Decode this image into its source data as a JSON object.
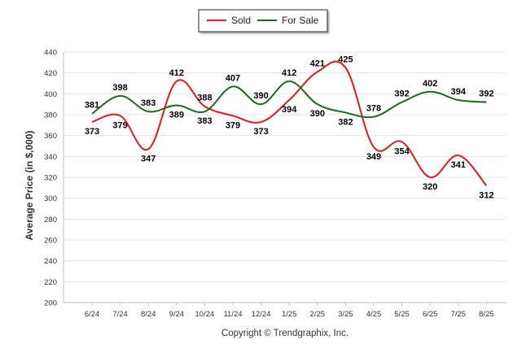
{
  "chart_data": {
    "type": "line",
    "categories": [
      "6/24",
      "7/24",
      "8/24",
      "9/24",
      "10/24",
      "11/24",
      "12/24",
      "1/25",
      "2/25",
      "3/25",
      "4/25",
      "5/25",
      "6/25",
      "7/25",
      "8/25"
    ],
    "series": [
      {
        "name": "Sold",
        "color": "#e31a1c",
        "values": [
          373,
          379,
          347,
          412,
          388,
          379,
          373,
          394,
          421,
          425,
          349,
          354,
          320,
          341,
          312
        ]
      },
      {
        "name": "For Sale",
        "color": "#1a6b1a",
        "values": [
          381,
          398,
          383,
          389,
          383,
          407,
          390,
          412,
          390,
          382,
          378,
          392,
          402,
          394,
          392
        ]
      }
    ],
    "ylabel": "Average Price (in $,000)",
    "xlabel": "",
    "ylim": [
      200,
      440
    ],
    "yticks": [
      200,
      220,
      240,
      260,
      280,
      300,
      320,
      340,
      360,
      380,
      400,
      420,
      440
    ],
    "grid": true,
    "legend_position": "top-center"
  },
  "footer": "Copyright © Trendgraphix, Inc."
}
